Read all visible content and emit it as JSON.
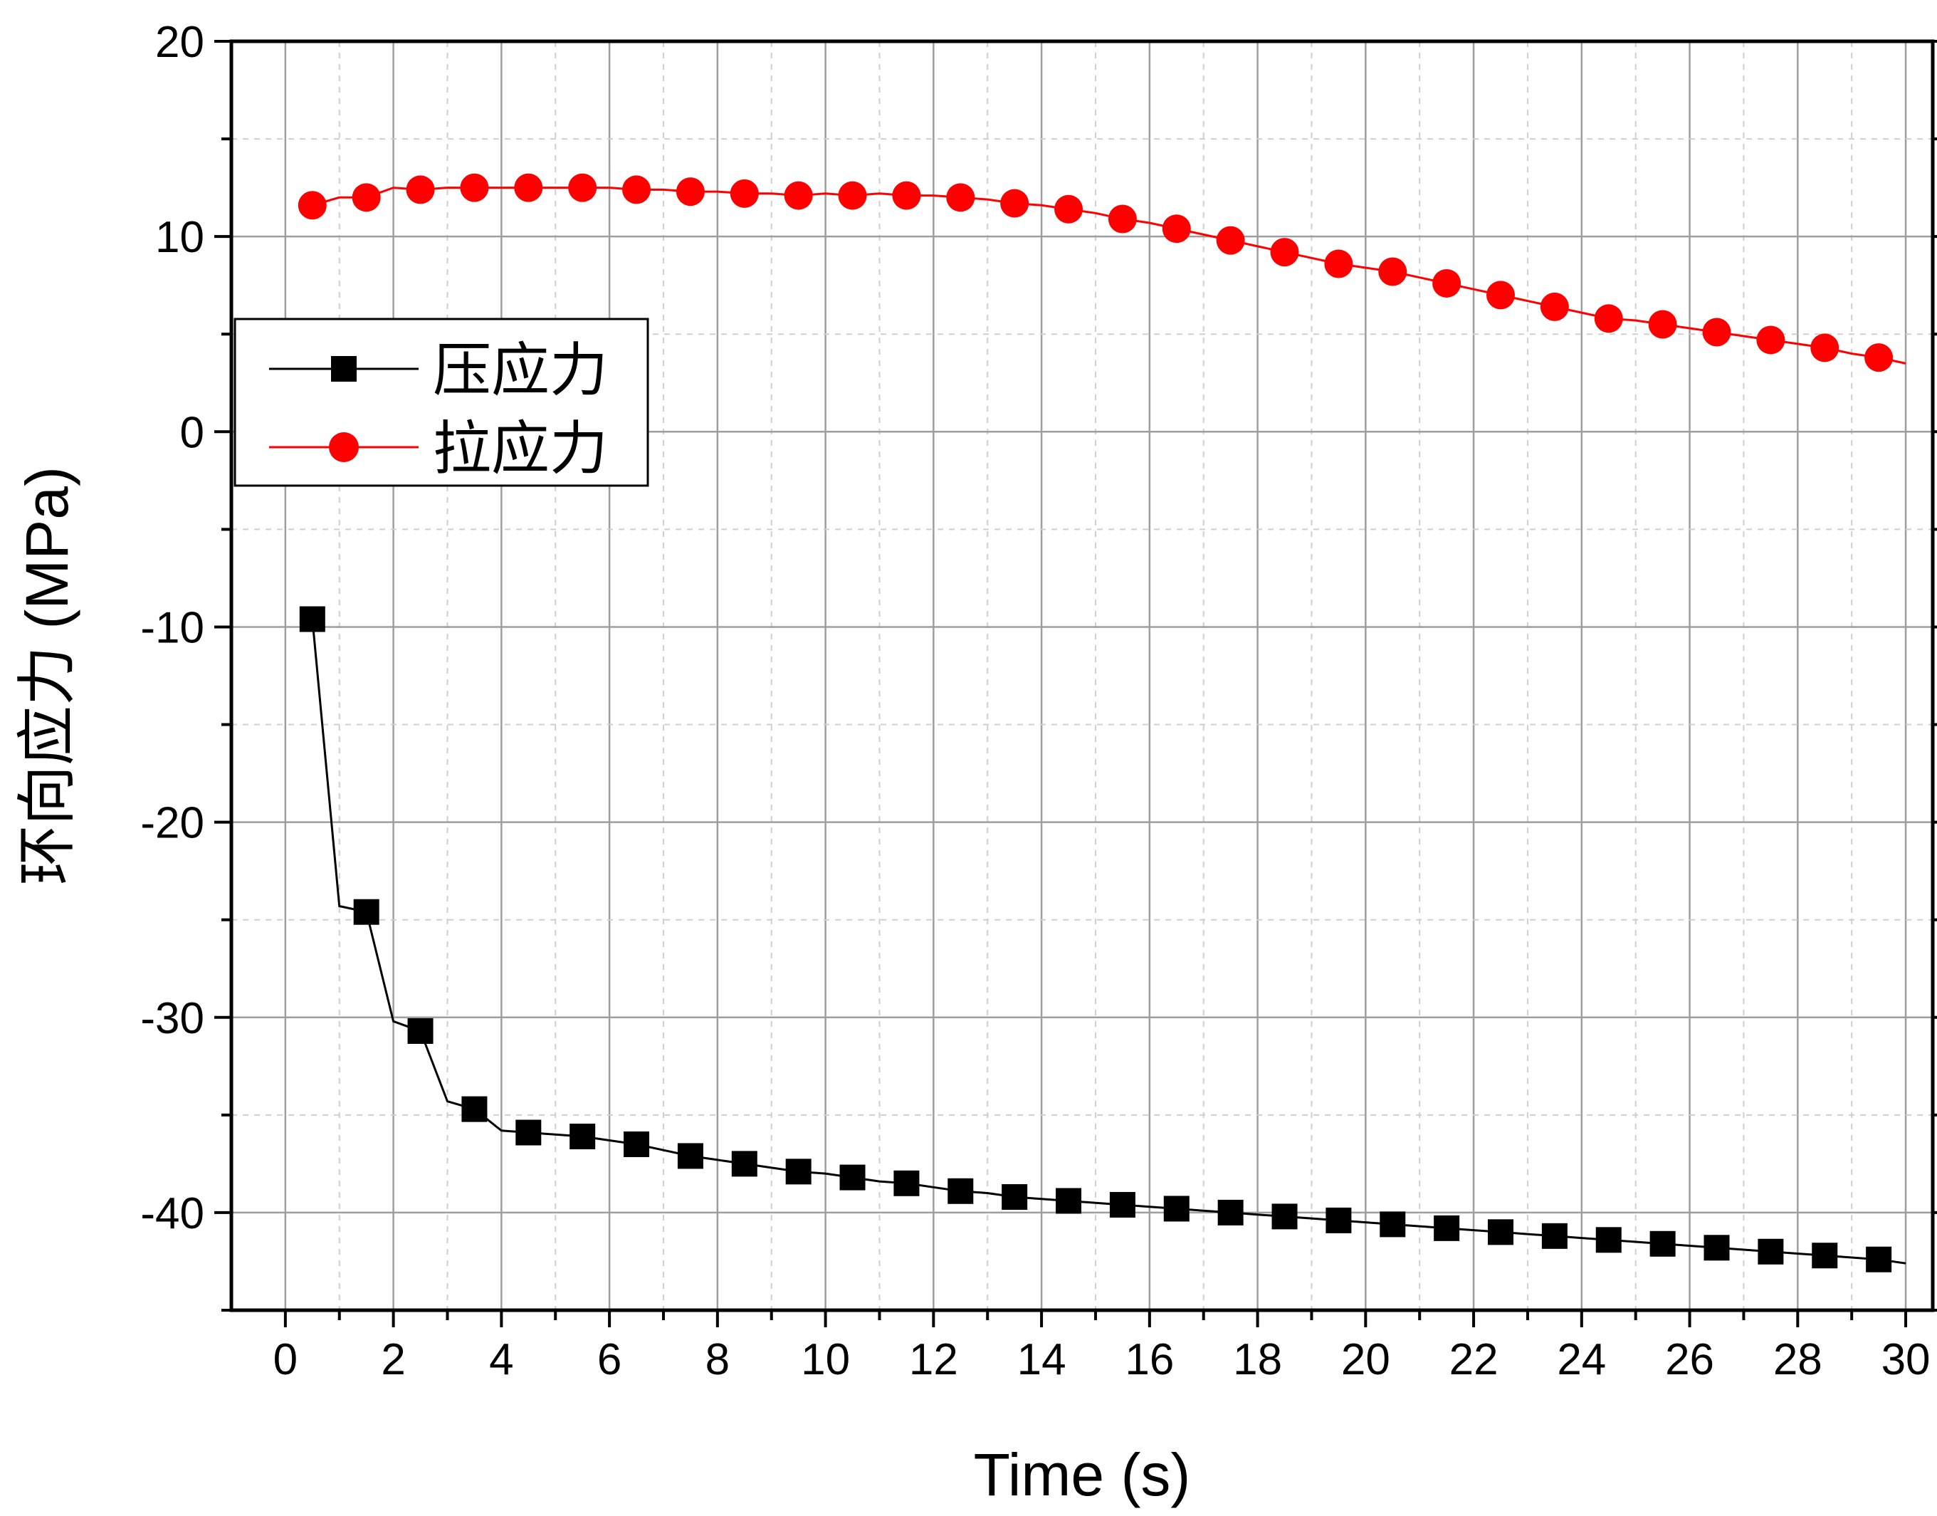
{
  "chart_data": {
    "type": "line",
    "xlabel": "Time (s)",
    "ylabel": "环向应力 (MPa)",
    "xlim": [
      -1,
      30.5
    ],
    "ylim": [
      -45,
      20
    ],
    "x_ticks": [
      "0",
      "2",
      "4",
      "6",
      "8",
      "10",
      "12",
      "14",
      "16",
      "18",
      "20",
      "22",
      "24",
      "26",
      "28",
      "30"
    ],
    "y_ticks": [
      "20",
      "10",
      "0",
      "-10",
      "-20",
      "-30",
      "-40"
    ],
    "grid": true,
    "legend_position": "upper-left",
    "series": [
      {
        "name": "压应力",
        "color": "#000000",
        "marker": "square",
        "x": [
          0.5,
          1.5,
          2.5,
          3.5,
          4.5,
          5.5,
          6.5,
          7.5,
          8.5,
          9.5,
          10.5,
          11.5,
          12.5,
          13.5,
          14.5,
          15.5,
          16.5,
          17.5,
          18.5,
          19.5,
          20.5,
          21.5,
          22.5,
          23.5,
          24.5,
          25.5,
          26.5,
          27.5,
          28.5,
          29.5
        ],
        "y": [
          -9.6,
          -24.6,
          -30.7,
          -34.7,
          -35.9,
          -36.1,
          -36.5,
          -37.1,
          -37.5,
          -37.9,
          -38.2,
          -38.5,
          -38.9,
          -39.2,
          -39.4,
          -39.6,
          -39.8,
          -40.0,
          -40.2,
          -40.4,
          -40.6,
          -40.8,
          -41.0,
          -41.2,
          -41.4,
          -41.6,
          -41.8,
          -42.0,
          -42.2,
          -42.4
        ],
        "line_x": [
          0.5,
          1.0,
          1.5,
          2.0,
          2.5,
          3.0,
          3.5,
          4.0,
          4.5,
          5.0,
          5.5,
          6.0,
          6.5,
          7.0,
          7.5,
          8.0,
          8.5,
          9.0,
          9.5,
          10.0,
          10.5,
          11.0,
          11.5,
          12.0,
          12.5,
          13.0,
          13.5,
          14.0,
          14.5,
          15.0,
          15.5,
          16.0,
          16.5,
          17.0,
          17.5,
          18.0,
          18.5,
          19.0,
          19.5,
          20.0,
          20.5,
          21.0,
          21.5,
          22.0,
          22.5,
          23.0,
          23.5,
          24.0,
          24.5,
          25.0,
          25.5,
          26.0,
          26.5,
          27.0,
          27.5,
          28.0,
          28.5,
          29.0,
          29.5,
          30.0
        ],
        "line_y": [
          -9.6,
          -24.3,
          -24.6,
          -30.2,
          -30.7,
          -34.3,
          -34.7,
          -35.8,
          -35.9,
          -36.0,
          -36.1,
          -36.3,
          -36.5,
          -36.8,
          -37.1,
          -37.3,
          -37.5,
          -37.7,
          -37.9,
          -38.0,
          -38.2,
          -38.4,
          -38.5,
          -38.7,
          -38.9,
          -39.0,
          -39.2,
          -39.3,
          -39.4,
          -39.5,
          -39.6,
          -39.7,
          -39.8,
          -39.9,
          -40.0,
          -40.1,
          -40.2,
          -40.3,
          -40.4,
          -40.5,
          -40.6,
          -40.7,
          -40.8,
          -40.9,
          -41.0,
          -41.1,
          -41.2,
          -41.3,
          -41.4,
          -41.5,
          -41.6,
          -41.7,
          -41.8,
          -41.9,
          -42.0,
          -42.1,
          -42.2,
          -42.3,
          -42.4,
          -42.6
        ]
      },
      {
        "name": "拉应力",
        "color": "#ff0000",
        "marker": "circle",
        "x": [
          0.5,
          1.5,
          2.5,
          3.5,
          4.5,
          5.5,
          6.5,
          7.5,
          8.5,
          9.5,
          10.5,
          11.5,
          12.5,
          13.5,
          14.5,
          15.5,
          16.5,
          17.5,
          18.5,
          19.5,
          20.5,
          21.5,
          22.5,
          23.5,
          24.5,
          25.5,
          26.5,
          27.5,
          28.5,
          29.5
        ],
        "y": [
          11.6,
          12.0,
          12.4,
          12.5,
          12.5,
          12.5,
          12.4,
          12.3,
          12.2,
          12.1,
          12.1,
          12.1,
          12.0,
          11.7,
          11.4,
          10.9,
          10.4,
          9.8,
          9.2,
          8.6,
          8.2,
          7.6,
          7.0,
          6.4,
          5.8,
          5.5,
          5.1,
          4.7,
          4.3,
          3.8
        ],
        "line_x": [
          0.5,
          1.0,
          1.5,
          2.0,
          2.5,
          3.0,
          3.5,
          4.0,
          4.5,
          5.0,
          5.5,
          6.0,
          6.5,
          7.0,
          7.5,
          8.0,
          8.5,
          9.0,
          9.5,
          10.0,
          10.5,
          11.0,
          11.5,
          12.0,
          12.5,
          13.0,
          13.5,
          14.0,
          14.5,
          15.0,
          15.5,
          16.0,
          16.5,
          17.0,
          17.5,
          18.0,
          18.5,
          19.0,
          19.5,
          20.0,
          20.5,
          21.0,
          21.5,
          22.0,
          22.5,
          23.0,
          23.5,
          24.0,
          24.5,
          25.0,
          25.5,
          26.0,
          26.5,
          27.0,
          27.5,
          28.0,
          28.5,
          29.0,
          29.5,
          30.0
        ],
        "line_y": [
          11.6,
          12.0,
          12.0,
          12.5,
          12.4,
          12.5,
          12.5,
          12.5,
          12.5,
          12.5,
          12.5,
          12.5,
          12.4,
          12.4,
          12.3,
          12.3,
          12.2,
          12.2,
          12.1,
          12.2,
          12.1,
          12.2,
          12.1,
          12.1,
          12.0,
          11.9,
          11.7,
          11.6,
          11.4,
          11.2,
          10.9,
          10.7,
          10.4,
          10.1,
          9.8,
          9.5,
          9.2,
          8.9,
          8.6,
          8.4,
          8.2,
          7.9,
          7.6,
          7.3,
          7.0,
          6.7,
          6.4,
          6.1,
          5.8,
          5.7,
          5.5,
          5.3,
          5.1,
          4.9,
          4.7,
          4.5,
          4.3,
          4.0,
          3.8,
          3.5
        ]
      }
    ]
  }
}
